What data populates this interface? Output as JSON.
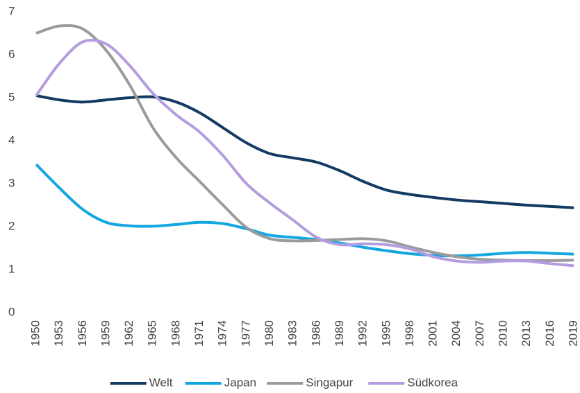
{
  "chart_data": {
    "type": "line",
    "x": [
      1950,
      1953,
      1956,
      1959,
      1962,
      1965,
      1968,
      1971,
      1974,
      1977,
      1980,
      1983,
      1986,
      1989,
      1992,
      1995,
      1998,
      2001,
      2004,
      2007,
      2010,
      2013,
      2016,
      2019
    ],
    "xlim": [
      1950,
      2019
    ],
    "xticks": [
      1950,
      1953,
      1956,
      1959,
      1962,
      1965,
      1968,
      1971,
      1974,
      1977,
      1980,
      1983,
      1986,
      1989,
      1992,
      1995,
      1998,
      2001,
      2004,
      2007,
      2010,
      2013,
      2016,
      2019
    ],
    "ylim": [
      0,
      7
    ],
    "yticks": [
      0,
      1,
      2,
      3,
      4,
      5,
      6,
      7
    ],
    "grid": false,
    "legend": "bottom",
    "series": [
      {
        "name": "Welt",
        "color": "#133a62",
        "values": [
          5.05,
          4.95,
          4.9,
          4.95,
          5.0,
          5.02,
          4.9,
          4.65,
          4.3,
          3.95,
          3.7,
          3.6,
          3.5,
          3.3,
          3.05,
          2.85,
          2.75,
          2.68,
          2.62,
          2.58,
          2.54,
          2.5,
          2.47,
          2.44
        ]
      },
      {
        "name": "Japan",
        "color": "#12a7e0",
        "values": [
          3.45,
          2.9,
          2.4,
          2.1,
          2.02,
          2.01,
          2.05,
          2.1,
          2.07,
          1.95,
          1.8,
          1.75,
          1.7,
          1.62,
          1.52,
          1.44,
          1.37,
          1.33,
          1.32,
          1.34,
          1.38,
          1.4,
          1.38,
          1.36
        ]
      },
      {
        "name": "Singapur",
        "color": "#9b9b9b",
        "values": [
          6.5,
          6.67,
          6.6,
          6.1,
          5.3,
          4.3,
          3.6,
          3.05,
          2.5,
          1.98,
          1.72,
          1.67,
          1.68,
          1.7,
          1.72,
          1.67,
          1.53,
          1.4,
          1.3,
          1.24,
          1.22,
          1.21,
          1.21,
          1.22
        ]
      },
      {
        "name": "Südkorea",
        "color": "#b49ce0",
        "values": [
          5.05,
          5.8,
          6.3,
          6.25,
          5.75,
          5.1,
          4.6,
          4.2,
          3.65,
          3.0,
          2.55,
          2.15,
          1.75,
          1.58,
          1.6,
          1.58,
          1.48,
          1.3,
          1.2,
          1.17,
          1.2,
          1.2,
          1.14,
          1.09
        ]
      }
    ]
  }
}
